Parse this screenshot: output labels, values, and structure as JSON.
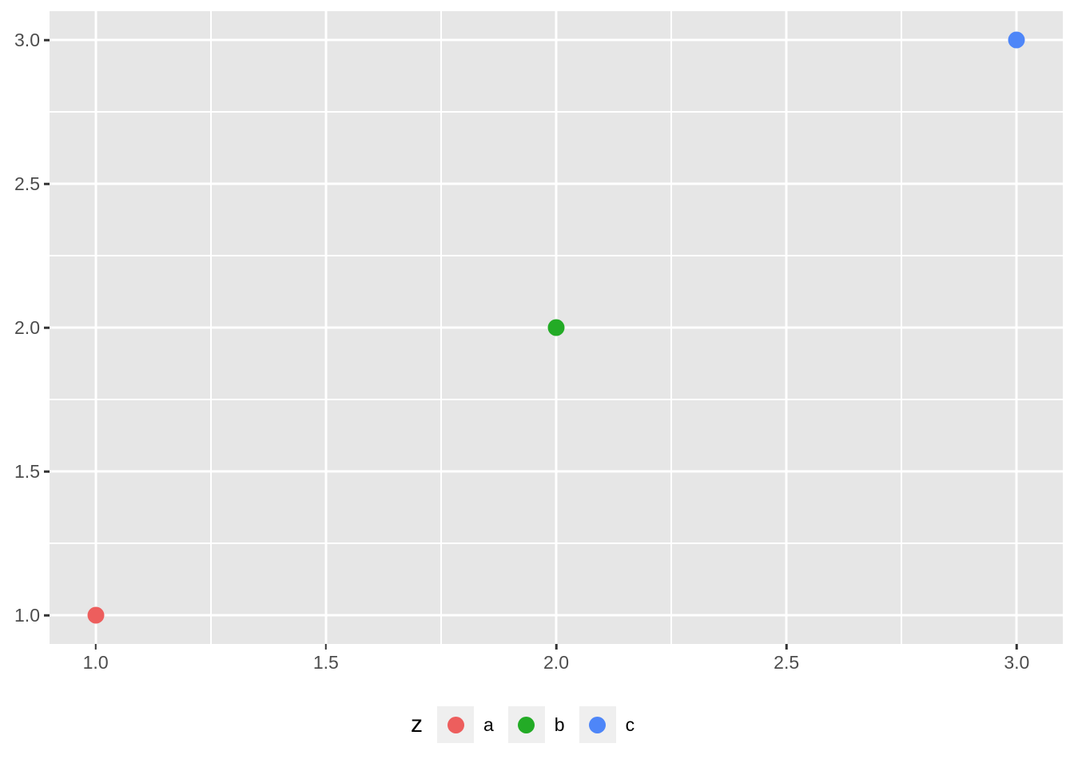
{
  "chart_data": {
    "type": "scatter",
    "title": "",
    "xlabel": "",
    "ylabel": "",
    "xlim": [
      0.9,
      3.1
    ],
    "ylim": [
      0.9,
      3.1
    ],
    "grid": true,
    "x_major_ticks": [
      1.0,
      1.5,
      2.0,
      2.5,
      3.0
    ],
    "y_major_ticks": [
      1.0,
      1.5,
      2.0,
      2.5,
      3.0
    ],
    "x_tick_labels": [
      "1.0",
      "1.5",
      "2.0",
      "2.5",
      "3.0"
    ],
    "y_tick_labels": [
      "1.0",
      "1.5",
      "2.0",
      "2.5",
      "3.0"
    ],
    "x_minor_ticks": [
      1.25,
      1.75,
      2.25,
      2.75
    ],
    "y_minor_ticks": [
      1.25,
      1.75,
      2.25,
      2.75
    ],
    "series": [
      {
        "name": "a",
        "color": "#ed5e5d",
        "points": [
          {
            "x": 1,
            "y": 1
          }
        ]
      },
      {
        "name": "b",
        "color": "#23ab26",
        "points": [
          {
            "x": 2,
            "y": 2
          }
        ]
      },
      {
        "name": "c",
        "color": "#4e86f8",
        "points": [
          {
            "x": 3,
            "y": 3
          }
        ]
      }
    ],
    "legend": {
      "title": "z",
      "position": "bottom",
      "entries": [
        {
          "label": "a",
          "color": "#ed5e5d"
        },
        {
          "label": "b",
          "color": "#23ab26"
        },
        {
          "label": "c",
          "color": "#4e86f8"
        }
      ]
    }
  },
  "style": {
    "panel_bg": "#e6e6e6",
    "grid_color": "#ffffff",
    "tick_color": "#333333",
    "axis_text_color": "#4d4d4d",
    "legend_key_bg": "#efefef"
  }
}
